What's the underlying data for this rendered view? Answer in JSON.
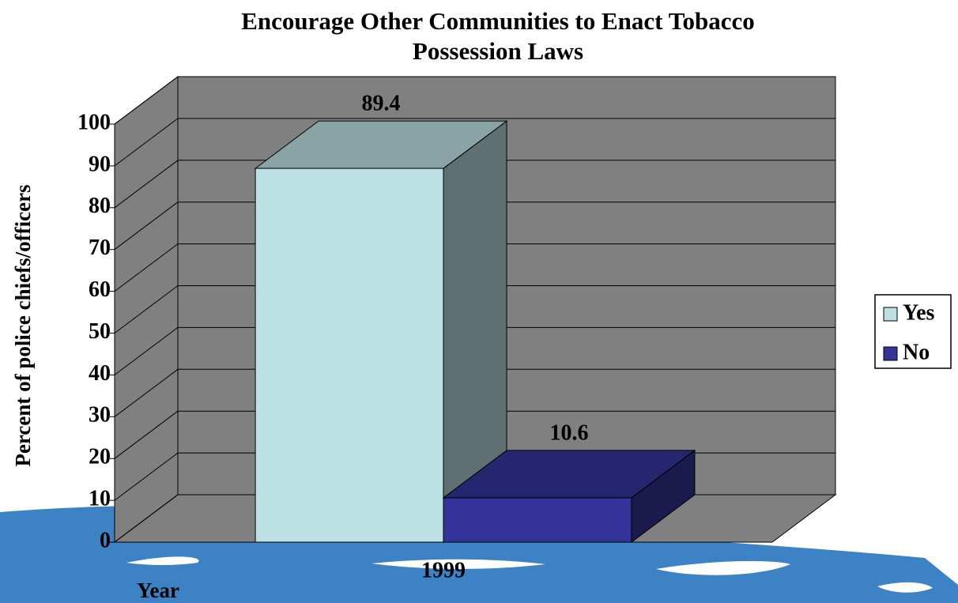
{
  "chart_data": {
    "type": "bar3d",
    "title": "Encourage Other Communities to Enact Tobacco Possession Laws",
    "y_label": "Percent of police chiefs/officers",
    "x_label": "Year",
    "categories": [
      "1999"
    ],
    "series": [
      {
        "name": "Yes",
        "color": "#bde0e4",
        "values": [
          89.4
        ]
      },
      {
        "name": "No",
        "color": "#333399",
        "values": [
          10.6
        ]
      }
    ],
    "ylim": [
      0,
      100
    ],
    "yticks": [
      0,
      10,
      20,
      30,
      40,
      50,
      60,
      70,
      80,
      90,
      100
    ],
    "grid": true,
    "legend": "right"
  }
}
